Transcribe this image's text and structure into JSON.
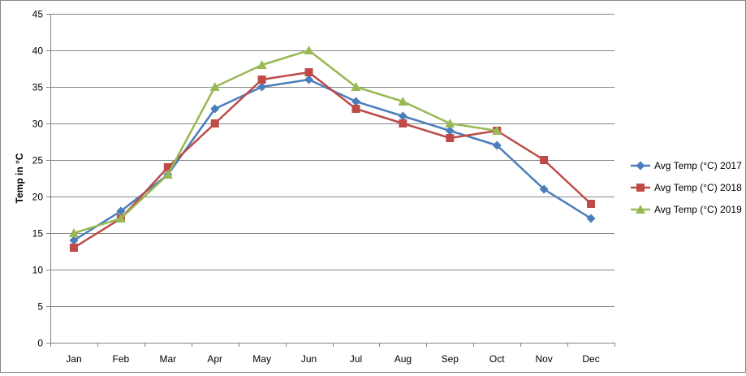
{
  "chart_data": {
    "type": "line",
    "title": "",
    "xlabel": "",
    "ylabel": "Temp in °C",
    "ylim": [
      0,
      45
    ],
    "ytick_step": 5,
    "grid": "horizontal",
    "legend_position": "right",
    "categories": [
      "Jan",
      "Feb",
      "Mar",
      "Apr",
      "May",
      "Jun",
      "Jul",
      "Aug",
      "Sep",
      "Oct",
      "Nov",
      "Dec"
    ],
    "series": [
      {
        "name": "Avg Temp (°C) 2017",
        "color": "#4a7ebb",
        "marker": "diamond",
        "values": [
          14,
          18,
          23,
          32,
          35,
          36,
          33,
          31,
          29,
          27,
          21,
          17
        ]
      },
      {
        "name": "Avg Temp (°C) 2018",
        "color": "#be4b48",
        "marker": "square",
        "values": [
          13,
          17,
          24,
          30,
          36,
          37,
          32,
          30,
          28,
          29,
          25,
          19
        ]
      },
      {
        "name": "Avg Temp (°C) 2019",
        "color": "#98b954",
        "marker": "triangle",
        "values": [
          15,
          17,
          23,
          35,
          38,
          40,
          35,
          33,
          30,
          29,
          null,
          null
        ]
      }
    ]
  }
}
